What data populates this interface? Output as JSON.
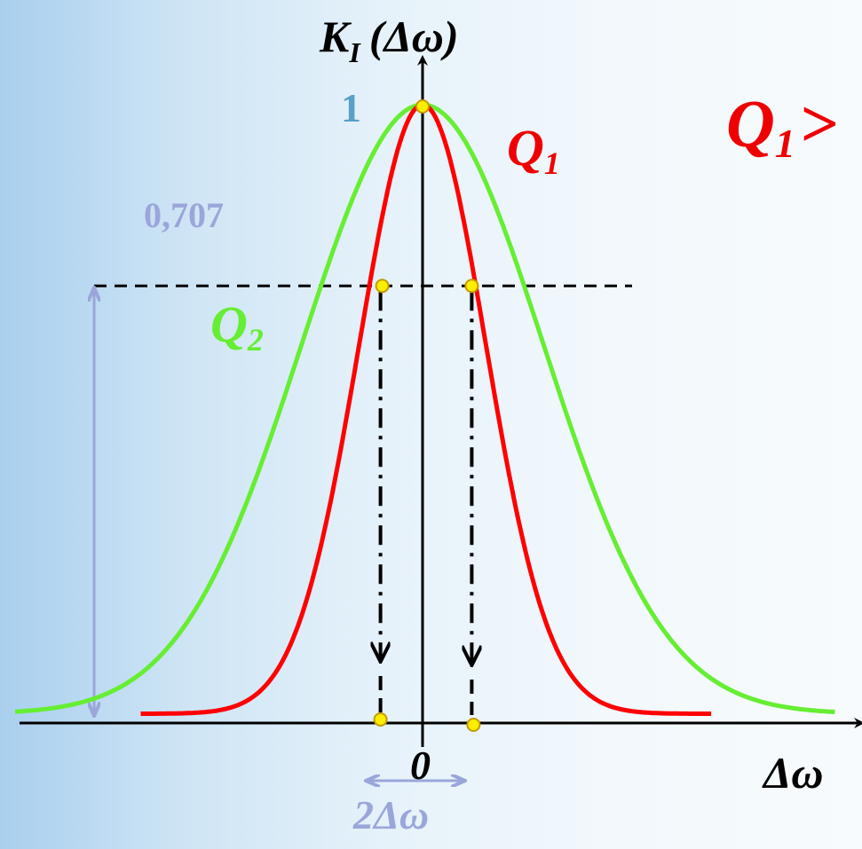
{
  "chart_data": {
    "type": "line",
    "title": "",
    "xlabel": "Δω",
    "ylabel_main": "K",
    "ylabel_sub": "I",
    "ylabel_arg": "(Δω)",
    "x_origin_label": "0",
    "peak_label": "1",
    "level_label": "0,707",
    "bandwidth_label": "2Δω",
    "relation_lhs_main": "Q",
    "relation_lhs_sub": "1",
    "relation_operator": ">",
    "ylim": [
      0,
      1
    ],
    "half_power_level": 0.707,
    "series": [
      {
        "name_main": "Q",
        "name_sub": "1",
        "color": "#ff0000",
        "peak": 1,
        "half_power_halfwidth": 0.55
      },
      {
        "name_main": "Q",
        "name_sub": "2",
        "color": "#66ee33",
        "peak": 1,
        "half_power_halfwidth": 1.05
      }
    ]
  },
  "colors": {
    "axis": "#000000",
    "guide": "#000000",
    "level_value": "#9aa6da",
    "peak_value": "#58a0c8",
    "marker_fill": "#ffee00",
    "marker_stroke": "#c49a00",
    "q1": "#ff0000",
    "q2": "#66ee33"
  }
}
